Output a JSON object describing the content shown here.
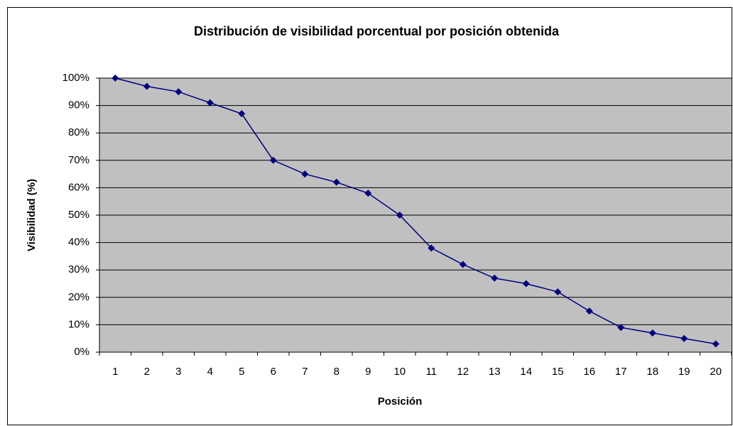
{
  "chart_data": {
    "type": "line",
    "title": "Distribución de visibilidad porcentual por posición obtenida",
    "x_label": "Posición",
    "y_label": "Visibilidad (%)",
    "categories": [
      "1",
      "2",
      "3",
      "4",
      "5",
      "6",
      "7",
      "8",
      "9",
      "10",
      "11",
      "12",
      "13",
      "14",
      "15",
      "16",
      "17",
      "18",
      "19",
      "20"
    ],
    "series": [
      {
        "color": "#000080",
        "values": [
          100,
          97,
          95,
          91,
          87,
          70,
          65,
          62,
          58,
          50,
          38,
          32,
          27,
          25,
          22,
          15,
          9,
          7,
          5,
          3
        ]
      }
    ],
    "ylim": [
      0,
      100
    ],
    "yticks": [
      {
        "value": 0,
        "label": "0%"
      },
      {
        "value": 10,
        "label": "10%"
      },
      {
        "value": 20,
        "label": "20%"
      },
      {
        "value": 30,
        "label": "30%"
      },
      {
        "value": 40,
        "label": "40%"
      },
      {
        "value": 50,
        "label": "50%"
      },
      {
        "value": 60,
        "label": "60%"
      },
      {
        "value": 70,
        "label": "70%"
      },
      {
        "value": 80,
        "label": "80%"
      },
      {
        "value": 90,
        "label": "90%"
      },
      {
        "value": 100,
        "label": "100%"
      }
    ],
    "grid": true,
    "plot_background": "#c0c0c0"
  }
}
